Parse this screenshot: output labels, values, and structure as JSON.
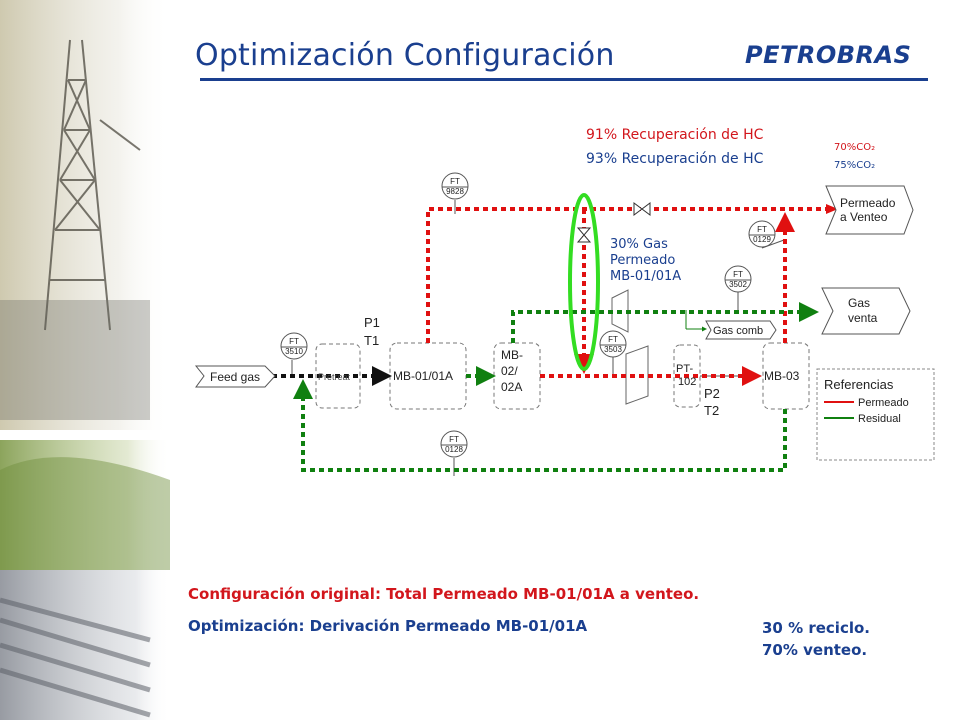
{
  "slide": {
    "title": "Optimización Configuración",
    "logo_text": "PETROBRAS",
    "accent_color": "#1a3f8f"
  },
  "annotations": {
    "recovery_91": "91% Recuperación de HC",
    "recovery_93": "93% Recuperación de HC",
    "co2_70": "70%CO₂",
    "co2_75": "75%CO₂",
    "gas_permeate_line1": "30% Gas",
    "gas_permeate_line2": "Permeado",
    "gas_permeate_line3": "MB-01/01A"
  },
  "diagram": {
    "feed": "Feed gas",
    "pretreat": "Pretreat",
    "membranes": {
      "mb01": "MB-01/01A",
      "mb02_line1": "MB-",
      "mb02_line2": "02/",
      "mb02_line3": "02A",
      "pt_line1": "PT-",
      "pt_line2": "102",
      "mb03": "MB-03"
    },
    "stage_labels": {
      "p1": "P1",
      "t1": "T1",
      "p2": "P2",
      "t2": "T2"
    },
    "instruments": [
      {
        "tag": "FT",
        "num": "9828"
      },
      {
        "tag": "FT",
        "num": "3510"
      },
      {
        "tag": "FT",
        "num": "0128"
      },
      {
        "tag": "FT",
        "num": "3503"
      },
      {
        "tag": "FT",
        "num": "3502"
      },
      {
        "tag": "FT",
        "num": "0129"
      }
    ],
    "outputs": {
      "vent_line1": "Permeado",
      "vent_line2": "a Venteo",
      "gas_line1": "Gas",
      "gas_line2": "venta",
      "gas_comb": "Gas comb"
    },
    "legend": {
      "title": "Referencias",
      "permeate": "Permeado",
      "residual": "Residual"
    },
    "colors": {
      "permeate": "#e01010",
      "residual": "#108010",
      "highlight": "#33dd22"
    }
  },
  "bottom": {
    "line1": "Configuración original: Total Permeado MB-01/01A a venteo.",
    "line2": "Optimización: Derivación Permeado MB-01/01A",
    "recycle": "30 % reciclo.",
    "vent": "70% venteo."
  }
}
